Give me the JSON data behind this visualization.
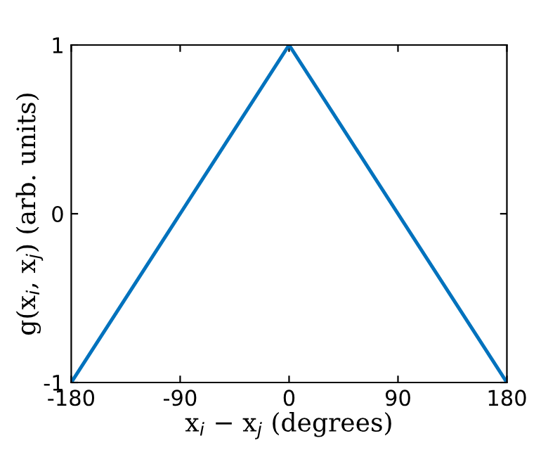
{
  "chart_data": {
    "type": "line",
    "xlabel": "x$_{i}$ − x$_{j}$ (degrees)",
    "ylabel": "g(x$_{i}$, x$_{j}$) (arb. units)",
    "x": [
      -180,
      0,
      180
    ],
    "series": [
      {
        "color": "#0072bd",
        "values": [
          -1,
          1,
          -1
        ]
      }
    ],
    "xlim": [
      -180,
      180
    ],
    "ylim": [
      -1,
      1
    ],
    "xticks": [
      -180,
      -90,
      0,
      90,
      180
    ],
    "yticks": [
      -1,
      0,
      1
    ],
    "grid": false,
    "legend": false,
    "marker": "none",
    "line_style": "solid"
  }
}
